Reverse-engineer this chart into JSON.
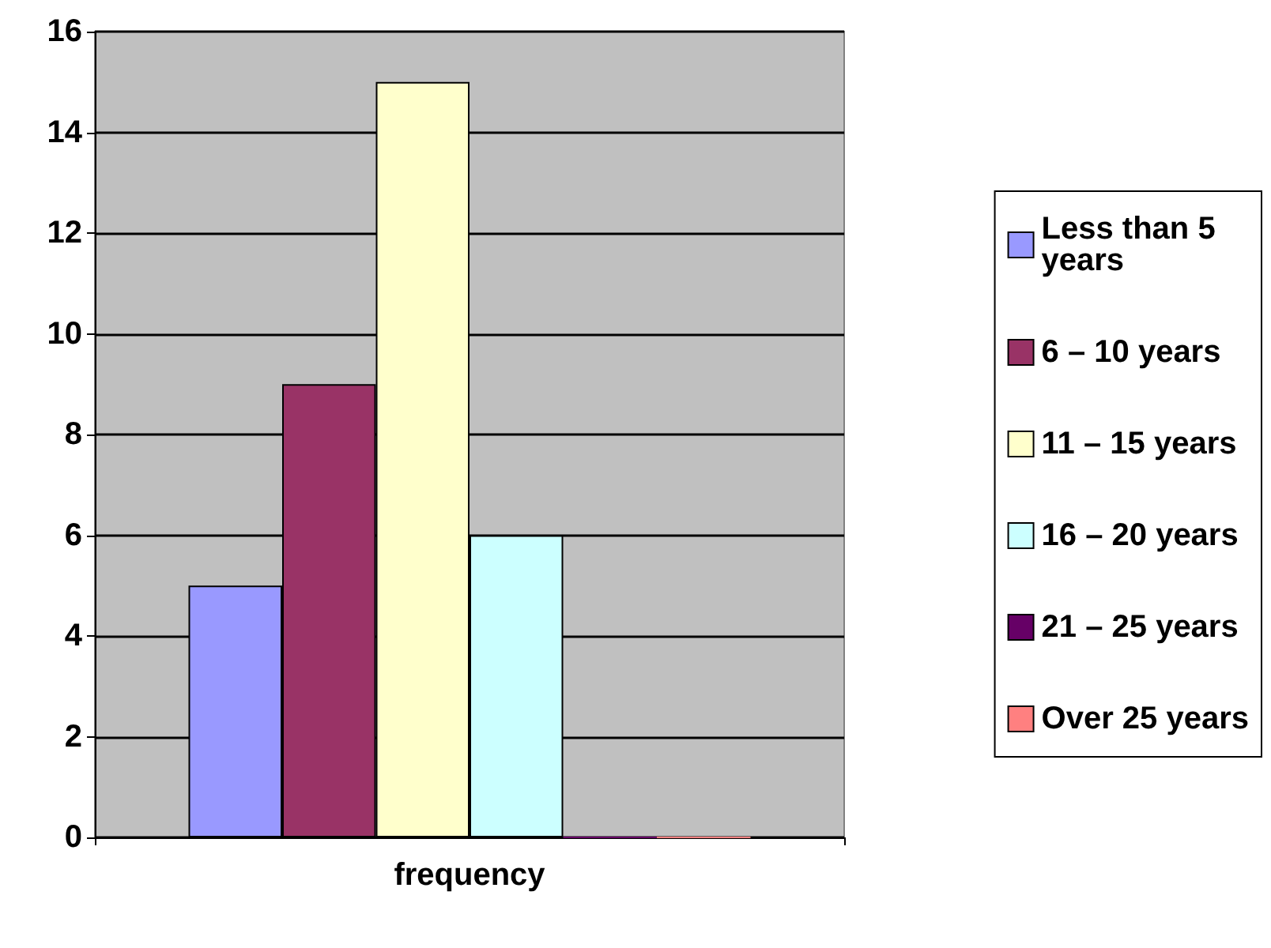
{
  "chart_data": {
    "type": "bar",
    "categories": [
      "frequency"
    ],
    "series": [
      {
        "name": "Less than 5 years",
        "color": "#9999ff",
        "values": [
          5
        ]
      },
      {
        "name": "6 – 10 years",
        "color": "#993366",
        "values": [
          9
        ]
      },
      {
        "name": "11 – 15 years",
        "color": "#ffffcc",
        "values": [
          15
        ]
      },
      {
        "name": "16 – 20 years",
        "color": "#ccffff",
        "values": [
          6
        ]
      },
      {
        "name": "21 – 25 years",
        "color": "#660066",
        "values": [
          0
        ]
      },
      {
        "name": "Over 25 years",
        "color": "#ff8080",
        "values": [
          0
        ]
      }
    ],
    "ylim": [
      0,
      16
    ],
    "yticks": [
      0,
      2,
      4,
      6,
      8,
      10,
      12,
      14,
      16
    ],
    "grid": "y",
    "legend": "right"
  }
}
